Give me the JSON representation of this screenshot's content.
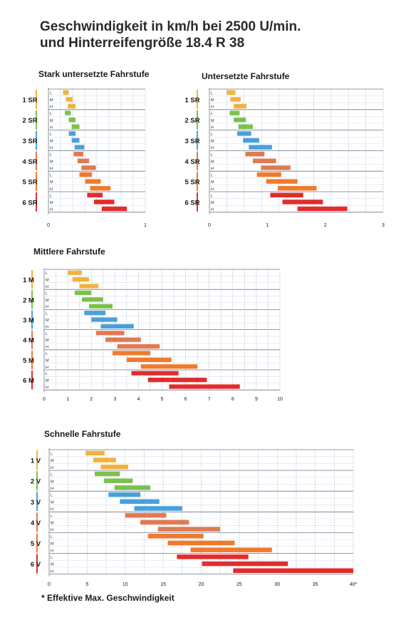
{
  "title": {
    "line1": "Geschwindigkeit in km/h bei 2500 U/min.",
    "line2": "und Hinterreifengröße 18.4 R 38"
  },
  "footnote": "* Effektive Max. Geschwindigkeit",
  "group_colors": [
    "#f2b33c",
    "#7dc04c",
    "#4a9fdc",
    "#e07a52",
    "#f07a2c",
    "#e02d2d"
  ],
  "row_labels": [
    "L",
    "M",
    "H"
  ],
  "chart_data": [
    {
      "type": "bar",
      "title": "Stark untersetzte Fahrstufe",
      "groups": [
        "1 SR",
        "2 SR",
        "3 SR",
        "4 SR",
        "5 SR",
        "6 SR"
      ],
      "rows": [
        "L",
        "M",
        "H"
      ],
      "xlim": [
        0,
        1
      ],
      "xticks": [
        "0",
        "1"
      ],
      "grid": true,
      "ranges": [
        [
          [
            0.15,
            0.21
          ],
          [
            0.18,
            0.25
          ],
          [
            0.2,
            0.28
          ]
        ],
        [
          [
            0.17,
            0.23
          ],
          [
            0.21,
            0.28
          ],
          [
            0.24,
            0.32
          ]
        ],
        [
          [
            0.21,
            0.28
          ],
          [
            0.24,
            0.32
          ],
          [
            0.27,
            0.37
          ]
        ],
        [
          [
            0.26,
            0.36
          ],
          [
            0.3,
            0.42
          ],
          [
            0.34,
            0.49
          ]
        ],
        [
          [
            0.32,
            0.45
          ],
          [
            0.38,
            0.54
          ],
          [
            0.43,
            0.64
          ]
        ],
        [
          [
            0.4,
            0.56
          ],
          [
            0.47,
            0.68
          ],
          [
            0.55,
            0.81
          ]
        ]
      ]
    },
    {
      "type": "bar",
      "title": "Untersetzte Fahrstufe",
      "groups": [
        "1 SR",
        "2 SR",
        "3 SR",
        "4 SR",
        "5 SR",
        "6 SR"
      ],
      "rows": [
        "L",
        "M",
        "H"
      ],
      "xlim": [
        0,
        3
      ],
      "xticks": [
        "0",
        "1",
        "2",
        "3"
      ],
      "grid": true,
      "ranges": [
        [
          [
            0.3,
            0.45
          ],
          [
            0.36,
            0.54
          ],
          [
            0.42,
            0.64
          ]
        ],
        [
          [
            0.35,
            0.52
          ],
          [
            0.42,
            0.63
          ],
          [
            0.5,
            0.75
          ]
        ],
        [
          [
            0.48,
            0.72
          ],
          [
            0.58,
            0.86
          ],
          [
            0.68,
            1.08
          ]
        ],
        [
          [
            0.62,
            0.95
          ],
          [
            0.75,
            1.15
          ],
          [
            0.89,
            1.4
          ]
        ],
        [
          [
            0.82,
            1.24
          ],
          [
            0.98,
            1.52
          ],
          [
            1.18,
            1.85
          ]
        ],
        [
          [
            1.05,
            1.62
          ],
          [
            1.26,
            1.96
          ],
          [
            1.52,
            2.38
          ]
        ]
      ]
    },
    {
      "type": "bar",
      "title": "Mittlere Fahrstufe",
      "groups": [
        "1 M",
        "2 M",
        "3 M",
        "4 M",
        "5 M",
        "6 M"
      ],
      "rows": [
        "L",
        "M",
        "H"
      ],
      "xlim": [
        0,
        10
      ],
      "xticks": [
        "0",
        "1",
        "2",
        "3",
        "4",
        "5",
        "6",
        "7",
        "8",
        "9",
        "10"
      ],
      "grid": true,
      "ranges": [
        [
          [
            1.0,
            1.6
          ],
          [
            1.2,
            1.9
          ],
          [
            1.5,
            2.3
          ]
        ],
        [
          [
            1.3,
            2.0
          ],
          [
            1.6,
            2.5
          ],
          [
            1.9,
            2.9
          ]
        ],
        [
          [
            1.7,
            2.6
          ],
          [
            2.0,
            3.1
          ],
          [
            2.4,
            3.8
          ]
        ],
        [
          [
            2.2,
            3.4
          ],
          [
            2.6,
            4.1
          ],
          [
            3.1,
            4.9
          ]
        ],
        [
          [
            2.9,
            4.5
          ],
          [
            3.5,
            5.4
          ],
          [
            4.1,
            6.5
          ]
        ],
        [
          [
            3.7,
            5.7
          ],
          [
            4.4,
            6.9
          ],
          [
            5.3,
            8.3
          ]
        ]
      ]
    },
    {
      "type": "bar",
      "title": "Schnelle Fahrstufe",
      "groups": [
        "1 V",
        "2 V",
        "3 V",
        "4 V",
        "5 V",
        "6 V"
      ],
      "rows": [
        "L",
        "M",
        "H"
      ],
      "xlim": [
        0,
        40
      ],
      "xticks": [
        "0",
        "5",
        "10",
        "15",
        "20",
        "25",
        "30",
        "35",
        "40*"
      ],
      "grid": true,
      "ranges": [
        [
          [
            4.8,
            7.3
          ],
          [
            5.8,
            8.8
          ],
          [
            6.8,
            10.4
          ]
        ],
        [
          [
            6.0,
            9.3
          ],
          [
            7.2,
            11.0
          ],
          [
            8.6,
            13.3
          ]
        ],
        [
          [
            7.8,
            12.0
          ],
          [
            9.3,
            14.5
          ],
          [
            11.2,
            17.5
          ]
        ],
        [
          [
            10.0,
            15.4
          ],
          [
            12.0,
            18.4
          ],
          [
            14.3,
            22.5
          ]
        ],
        [
          [
            13.0,
            20.3
          ],
          [
            15.6,
            24.4
          ],
          [
            18.6,
            29.3
          ]
        ],
        [
          [
            16.8,
            26.2
          ],
          [
            20.1,
            31.4
          ],
          [
            24.2,
            40.0
          ]
        ]
      ]
    }
  ]
}
